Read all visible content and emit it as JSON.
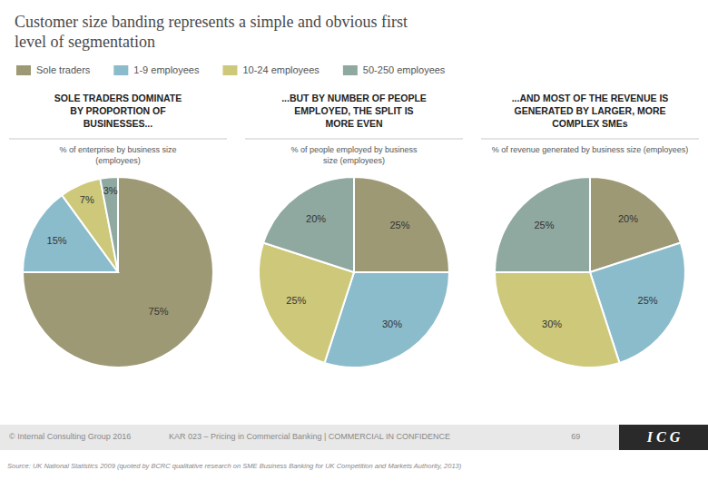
{
  "title": "Customer size banding represents a simple and obvious first\nlevel of segmentation",
  "chart_data": [
    {
      "type": "pie",
      "title": "SOLE TRADERS DOMINATE\nBY PROPORTION OF\nBUSINESSES...",
      "subtitle": "% of enterprise by business size\n(employees)",
      "categories": [
        "Sole traders",
        "1-9 employees",
        "10-24 employees",
        "50-250 employees"
      ],
      "values": [
        75,
        15,
        7,
        3
      ],
      "value_labels": [
        "75%",
        "15%",
        "7%",
        "3%"
      ],
      "colors": [
        "#9e9975",
        "#8bbccc",
        "#cdc87a",
        "#8fa8a0"
      ],
      "legend": "top"
    },
    {
      "type": "pie",
      "title": "...BUT BY NUMBER OF PEOPLE\nEMPLOYED, THE SPLIT IS\nMORE EVEN",
      "subtitle": "% of people employed by business\nsize (employees)",
      "categories": [
        "Sole traders",
        "1-9 employees",
        "10-24 employees",
        "50-250 employees"
      ],
      "values": [
        25,
        30,
        25,
        20
      ],
      "value_labels": [
        "25%",
        "30%",
        "25%",
        "20%"
      ],
      "colors": [
        "#9e9975",
        "#8bbccc",
        "#cdc87a",
        "#8fa8a0"
      ]
    },
    {
      "type": "pie",
      "title": "...AND MOST OF THE REVENUE IS\nGENERATED BY LARGER, MORE\nCOMPLEX SMEs",
      "subtitle": "% of revenue generated by business size (employees)",
      "categories": [
        "Sole traders",
        "1-9 employees",
        "10-24 employees",
        "50-250 employees"
      ],
      "values": [
        20,
        25,
        30,
        25
      ],
      "value_labels": [
        "20%",
        "25%",
        "30%",
        "25%"
      ],
      "colors": [
        "#9e9975",
        "#8bbccc",
        "#cdc87a",
        "#8fa8a0"
      ]
    }
  ],
  "annotations": [
    "© Internal Consulting Group 2016",
    "KAR 023 – Pricing in Commercial Banking | COMMERCIAL IN CONFIDENCE",
    "69",
    "I C G",
    "Source: UK National Statistics 2009 (quoted by BCRC qualitative research on SME Business Banking for UK Competition and Markets Authority,  2013)"
  ]
}
